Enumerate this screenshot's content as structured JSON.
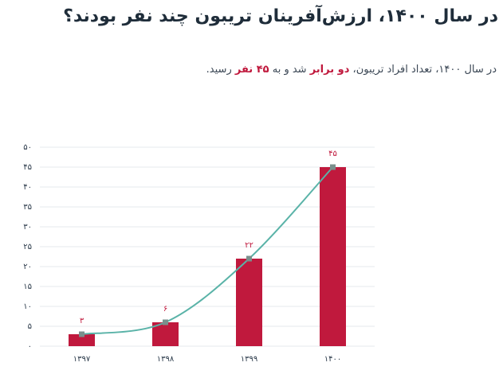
{
  "header": {
    "title": "در سال ۱۴۰۰، ارزش‌آفرینان تریبون چند نفر بودند؟"
  },
  "subtitle": {
    "part1": "در سال ۱۴۰۰، تعداد افراد تریبون، ",
    "highlight1": "دو برابر",
    "part2": " شد و به ",
    "highlight2": "۴۵ نفر",
    "part3": " رسید."
  },
  "colors": {
    "bar": "#c0193d",
    "line": "#5ab3a8",
    "marker": "#7a8f8c",
    "grid": "#e6e9ee",
    "accent": "#c0193d"
  },
  "chart_data": {
    "type": "bar",
    "categories": [
      "۱۳۹۷",
      "۱۳۹۸",
      "۱۳۹۹",
      "۱۴۰۰"
    ],
    "values": [
      3,
      6,
      22,
      45
    ],
    "value_labels": [
      "۳",
      "۶",
      "۲۲",
      "۴۵"
    ],
    "overlay_line": true,
    "ylim": [
      0,
      50
    ],
    "yticks": [
      0,
      5,
      10,
      15,
      20,
      25,
      30,
      35,
      40,
      45,
      50
    ],
    "ytick_labels": [
      "۰",
      "۵",
      "۱۰",
      "۱۵",
      "۲۰",
      "۲۵",
      "۳۰",
      "۳۵",
      "۴۰",
      "۴۵",
      "۵۰"
    ],
    "grid": true
  }
}
